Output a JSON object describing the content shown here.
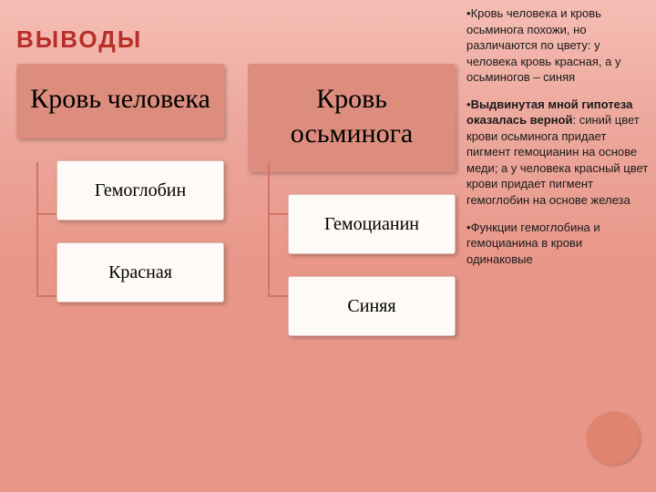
{
  "title": "ВЫВОДЫ",
  "title_color": "#b82f2a",
  "diagram": {
    "trees": [
      {
        "root": {
          "text": "Кровь человека",
          "bg": "#dc8d7e",
          "fg": "#000000"
        },
        "children": [
          {
            "text": "Гемоглобин",
            "bg": "#fdfaf7",
            "fg": "#000000",
            "border": "#dfbfb4"
          },
          {
            "text": "Красная",
            "bg": "#fdfaf7",
            "fg": "#000000",
            "border": "#dfbfb4"
          }
        ]
      },
      {
        "root": {
          "text": "Кровь осьминога",
          "bg": "#dc8d7e",
          "fg": "#000000"
        },
        "children": [
          {
            "text": "Гемоцианин",
            "bg": "#fdfaf7",
            "fg": "#000000",
            "border": "#dfbfb4"
          },
          {
            "text": "Синяя",
            "bg": "#fdfaf7",
            "fg": "#000000",
            "border": "#dfbfb4"
          }
        ]
      }
    ],
    "connector_color": "#d07568",
    "root_height": 108,
    "child_height": 66,
    "child_gap": 24
  },
  "sidebar": {
    "items": [
      {
        "prefix": "• ",
        "bold_part": "",
        "text": "Кровь человека и кровь осьминога похожи, но различаются по цвету: у человека кровь красная, а у осьминогов – синяя"
      },
      {
        "prefix": "• ",
        "bold_part": "Выдвинутая мной гипотеза оказалась верной",
        "text": ": синий цвет крови осьминога придает пигмент гемоцианин на основе меди; а у человека красный цвет крови придает пигмент гемоглобин на основе железа"
      },
      {
        "prefix": "• ",
        "bold_part": "",
        "text": "Функции гемоглобина и гемоцианина в крови одинаковые"
      }
    ]
  },
  "circle_color": "#e1846f"
}
